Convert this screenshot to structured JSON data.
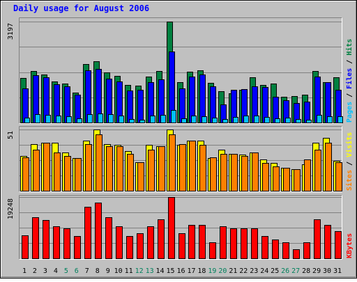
{
  "chart_data": {
    "type": "bar",
    "title": "Daily usage for August 2006",
    "categories": [
      "1",
      "2",
      "3",
      "4",
      "5",
      "6",
      "7",
      "8",
      "9",
      "10",
      "11",
      "12",
      "13",
      "14",
      "15",
      "16",
      "17",
      "18",
      "19",
      "20",
      "21",
      "22",
      "23",
      "24",
      "25",
      "26",
      "27",
      "28",
      "29",
      "30",
      "31"
    ],
    "weekend_days": [
      "5",
      "6",
      "12",
      "13",
      "19",
      "20",
      "26",
      "27"
    ],
    "panels": [
      {
        "id": "hits",
        "ymax_label": "3197",
        "ymax": 3197,
        "ylabel_parts": [
          "Pages",
          "Files",
          "Hits"
        ],
        "series": [
          {
            "name": "Hits",
            "color": "#008040",
            "values": [
              1421,
              1623,
              1519,
              1298,
              1237,
              940,
              1854,
              1943,
              1578,
              1487,
              1186,
              1177,
              1466,
              1623,
              3197,
              1270,
              1620,
              1654,
              1251,
              993,
              930,
              1040,
              1429,
              1190,
              1237,
              816,
              846,
              872,
              1623,
              1283,
              1435
            ]
          },
          {
            "name": "Files",
            "color": "#0000ff",
            "values": [
              1082,
              1505,
              1431,
              1209,
              1138,
              872,
              1646,
              1708,
              1399,
              1303,
              1023,
              1033,
              1270,
              1362,
              2248,
              1089,
              1452,
              1518,
              1138,
              578,
              1046,
              1060,
              1145,
              1116,
              817,
              698,
              615,
              658,
              1450,
              1272,
              1034
            ]
          },
          {
            "name": "Pages",
            "color": "#00c0ff",
            "values": [
              151,
              260,
              250,
              224,
              205,
              136,
              263,
              283,
              269,
              212,
              117,
              78,
              225,
              247,
              397,
              127,
              212,
              201,
              164,
              118,
              177,
              225,
              215,
              186,
              128,
              152,
              102,
              79,
              248,
              208,
              204
            ]
          }
        ]
      },
      {
        "id": "visits",
        "ymax_label": "51",
        "ymax": 51,
        "ylabel_parts": [
          "Sites",
          "Visits"
        ],
        "series": [
          {
            "name": "Visits",
            "color": "#ffff00",
            "values": [
              29,
              39,
              40,
              40,
              32,
              27,
              42,
              51,
              39,
              38,
              33,
              24,
              38,
              37,
              51,
              38,
              42,
              42,
              27,
              34,
              31,
              30,
              32,
              26,
              23,
              19,
              18,
              22,
              40,
              44,
              25
            ]
          },
          {
            "name": "Sites",
            "color": "#ff8000",
            "values": [
              28,
              34,
              40,
              32,
              29,
              27,
              39,
              47,
              37,
              37,
              31,
              24,
              34,
              37,
              47,
              39,
              42,
              38,
              28,
              31,
              31,
              29,
              32,
              23,
              20,
              19,
              18,
              26,
              34,
              40,
              24
            ]
          }
        ]
      },
      {
        "id": "kbytes",
        "ymax_label": "19248",
        "ymax": 19248,
        "ylabel_parts": [
          "KBytes"
        ],
        "series": [
          {
            "name": "KBytes",
            "color": "#ff0000",
            "values": [
              7310,
              12838,
              12012,
              10048,
              9457,
              6935,
              16163,
              17437,
              12938,
              10048,
              6935,
              7935,
              10048,
              12251,
              19248,
              7935,
              10448,
              10448,
              4985,
              10048,
              9457,
              9457,
              9457,
              6935,
              5985,
              4985,
              2735,
              4985,
              12251,
              10448,
              8457
            ]
          }
        ]
      }
    ],
    "ylabel_colors": {
      "Pages": "#00c0ff",
      "Files": "#0000ff",
      "Hits": "#008040",
      "Sites": "#ff8000",
      "Visits": "#ffff00",
      "KBytes": "#ff0000"
    },
    "ylabel_separator": " / ",
    "colors": {
      "background": "#c0c0c0",
      "title": "#0000ff",
      "weekday_label": "#000000",
      "weekend_label": "#00805c"
    }
  }
}
